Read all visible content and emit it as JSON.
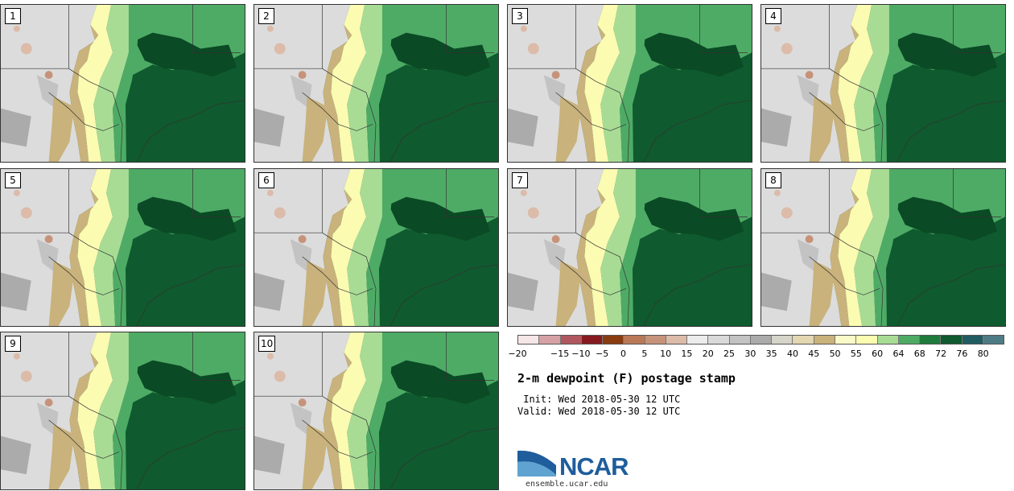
{
  "panels": [
    {
      "label": "1"
    },
    {
      "label": "2"
    },
    {
      "label": "3"
    },
    {
      "label": "4"
    },
    {
      "label": "5"
    },
    {
      "label": "6"
    },
    {
      "label": "7"
    },
    {
      "label": "8"
    },
    {
      "label": "9"
    },
    {
      "label": "10"
    }
  ],
  "colorbar": {
    "colors": [
      "#f6e6e8",
      "#d6a1a5",
      "#b0575f",
      "#861a20",
      "#8a3b10",
      "#b97958",
      "#c6937a",
      "#dcbba9",
      "#ececec",
      "#d9d9d9",
      "#c3c3c3",
      "#ababab",
      "#d5d5ca",
      "#e3d7b1",
      "#c9b27b",
      "#fafac9",
      "#fbfbb2",
      "#a8dc95",
      "#4eab66",
      "#1e7b3c",
      "#0f5a2e",
      "#1f5d62",
      "#4e7b85"
    ],
    "ticks": [
      "−20",
      "−15",
      "−10",
      "−5",
      "0",
      "5",
      "10",
      "15",
      "20",
      "25",
      "30",
      "35",
      "40",
      "45",
      "50",
      "55",
      "60",
      "64",
      "68",
      "72",
      "76",
      "80"
    ]
  },
  "title": "2-m dewpoint (F) postage stamp",
  "init": " Init: Wed 2018-05-30 12 UTC",
  "valid": "Valid: Wed 2018-05-30 12 UTC",
  "logo": {
    "text": "NCAR",
    "url": "ensemble.ucar.edu"
  }
}
